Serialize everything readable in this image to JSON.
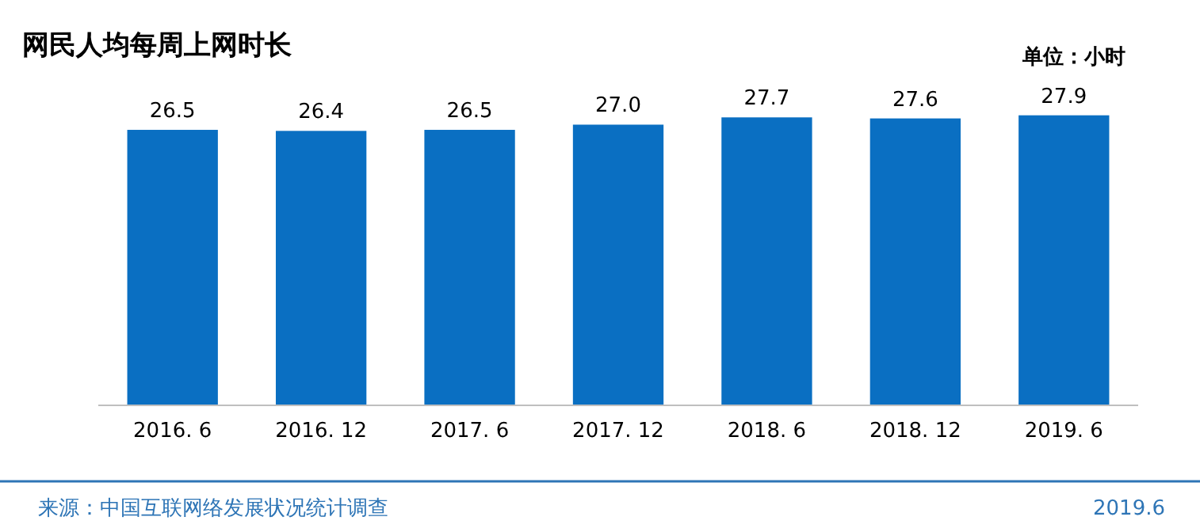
{
  "chart_data": {
    "type": "bar",
    "title": "网民人均每周上网时长",
    "categories": [
      "2016. 6",
      "2016. 12",
      "2017. 6",
      "2017. 12",
      "2018. 6",
      "2018. 12",
      "2019. 6"
    ],
    "values": [
      26.5,
      26.4,
      26.5,
      27.0,
      27.7,
      27.6,
      27.9
    ],
    "value_labels": [
      "26.5",
      "26.4",
      "26.5",
      "27.0",
      "27.7",
      "27.6",
      "27.9"
    ],
    "color": "#0a6fc2",
    "annotations": [
      "单位：小时",
      "来源：中国互联网络发展状况统计调查",
      "2019.6"
    ]
  }
}
